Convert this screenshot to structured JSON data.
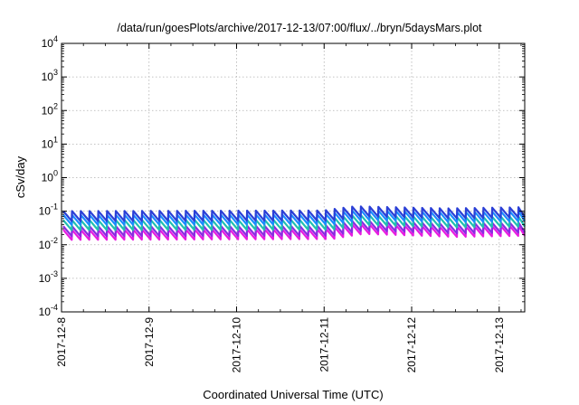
{
  "chart_data": {
    "type": "line",
    "title": "/data/run/goesPlots/archive/2017-12-13/07:00/flux/../bryn/5daysMars.plot",
    "xlabel": "Coordinated Universal Time (UTC)",
    "ylabel": "cSv/day",
    "yscale": "log",
    "ylim": [
      0.0001,
      10000
    ],
    "xlim": [
      "2017-12-08",
      "2017-12-13T07:00"
    ],
    "grid": true,
    "legend": "none",
    "x_ticks": [
      "2017-12-8",
      "2017-12-9",
      "2017-12-10",
      "2017-12-11",
      "2017-12-12",
      "2017-12-13"
    ],
    "y_ticks": [
      {
        "base": "10",
        "exp": "4"
      },
      {
        "base": "10",
        "exp": "3"
      },
      {
        "base": "10",
        "exp": "2"
      },
      {
        "base": "10",
        "exp": "1"
      },
      {
        "base": "10",
        "exp": "0"
      },
      {
        "base": "10",
        "exp": "-1"
      },
      {
        "base": "10",
        "exp": "-2"
      },
      {
        "base": "10",
        "exp": "-3"
      },
      {
        "base": "10",
        "exp": "-4"
      }
    ],
    "sawtooth_period_hours": 2.4,
    "series": [
      {
        "color": "#e81ce0",
        "level_profile": [
          [
            0,
            0.018
          ],
          [
            3,
            0.019
          ],
          [
            3.35,
            0.027
          ],
          [
            4.4,
            0.022
          ],
          [
            5.29,
            0.024
          ]
        ]
      },
      {
        "color": "#8a2be2",
        "level_profile": [
          [
            0,
            0.023
          ],
          [
            3,
            0.024
          ],
          [
            3.35,
            0.034
          ],
          [
            4.4,
            0.028
          ],
          [
            5.29,
            0.03
          ]
        ]
      },
      {
        "color": "#20c0b0",
        "level_profile": [
          [
            0,
            0.035
          ],
          [
            3,
            0.036
          ],
          [
            3.35,
            0.05
          ],
          [
            4.4,
            0.042
          ],
          [
            5.29,
            0.045
          ]
        ]
      },
      {
        "color": "#1a8cff",
        "level_profile": [
          [
            0,
            0.05
          ],
          [
            3,
            0.052
          ],
          [
            3.35,
            0.07
          ],
          [
            4.4,
            0.06
          ],
          [
            5.29,
            0.065
          ]
        ]
      },
      {
        "color": "#2a3fd6",
        "level_profile": [
          [
            0,
            0.065
          ],
          [
            3,
            0.068
          ],
          [
            3.35,
            0.09
          ],
          [
            4.4,
            0.078
          ],
          [
            5.29,
            0.085
          ]
        ]
      }
    ]
  }
}
